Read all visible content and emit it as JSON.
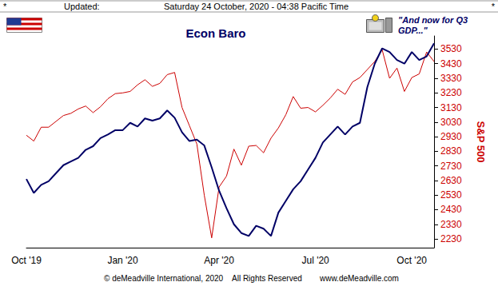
{
  "chart_data": {
    "type": "line",
    "title": "Econ Baro",
    "ylabel": "S&P 500",
    "header": {
      "left": "*",
      "label": "Updated:",
      "timestamp": "Saturday 24 October, 2020 - 04:38 Pacific Time",
      "right": "*"
    },
    "annotations": [
      "\"And now for Q3 GDP...\""
    ],
    "footer": [
      "© deMeadville International, 2020",
      "All Rights Reserved",
      "www.deMeadville.com"
    ],
    "categories": [
      "Oct '19",
      null,
      null,
      null,
      null,
      null,
      null,
      null,
      null,
      null,
      null,
      null,
      null,
      "Jan '20",
      null,
      null,
      null,
      null,
      null,
      null,
      null,
      null,
      null,
      null,
      null,
      null,
      "Apr '20",
      null,
      null,
      null,
      null,
      null,
      null,
      null,
      null,
      null,
      null,
      null,
      null,
      "Jul '20",
      null,
      null,
      null,
      null,
      null,
      null,
      null,
      null,
      null,
      null,
      null,
      null,
      "Oct '20",
      null,
      null,
      null
    ],
    "series": [
      {
        "name": "Econ Baro",
        "color": "#000066",
        "values": [
          2640,
          2545,
          2600,
          2625,
          2680,
          2735,
          2760,
          2785,
          2840,
          2865,
          2920,
          2945,
          2975,
          2975,
          3025,
          3000,
          3055,
          3040,
          3055,
          3110,
          3060,
          2960,
          2900,
          2910,
          2870,
          2720,
          2560,
          2440,
          2330,
          2270,
          2250,
          2320,
          2300,
          2250,
          2410,
          2490,
          2570,
          2625,
          2705,
          2785,
          2890,
          2945,
          3000,
          2945,
          3000,
          3025,
          3270,
          3430,
          3535,
          3510,
          3455,
          3430,
          3510,
          3455,
          3480,
          3570
        ]
      },
      {
        "name": "S&P 500",
        "color": "#cc0000",
        "values": [
          2940,
          2900,
          2995,
          2995,
          3035,
          3075,
          3090,
          3120,
          3140,
          3095,
          3135,
          3190,
          3225,
          3230,
          3240,
          3285,
          3320,
          3275,
          3295,
          3355,
          3370,
          3130,
          3005,
          2880,
          2530,
          2237,
          2585,
          2660,
          2845,
          2735,
          2865,
          2870,
          2820,
          2920,
          2990,
          3080,
          3205,
          3125,
          3130,
          3100,
          3145,
          3195,
          3255,
          3220,
          3305,
          3335,
          3390,
          3445,
          3525,
          3330,
          3400,
          3240,
          3335,
          3360,
          3510,
          3445
        ]
      }
    ],
    "ylim": [
      2170,
      3620
    ],
    "yticks": [
      2230,
      2330,
      2430,
      2530,
      2630,
      2730,
      2830,
      2930,
      3030,
      3130,
      3230,
      3330,
      3430,
      3530
    ],
    "grid": false
  }
}
